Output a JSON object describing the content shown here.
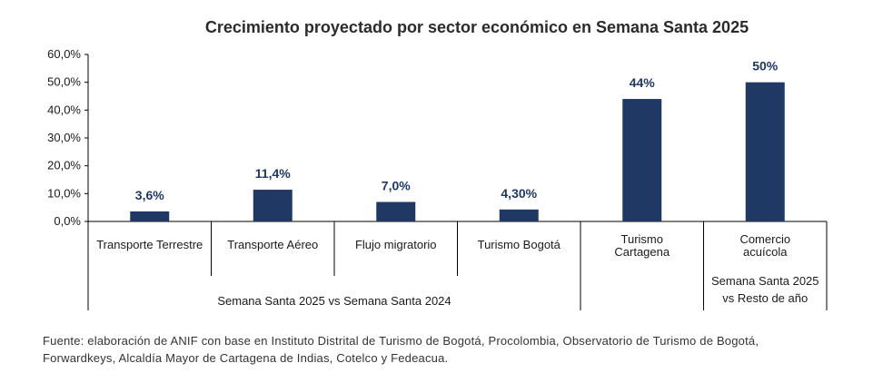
{
  "chart_data": {
    "type": "bar",
    "title": "Crecimiento proyectado por sector económico en Semana Santa 2025",
    "categories": [
      [
        "Transporte Terrestre"
      ],
      [
        "Transporte Aéreo"
      ],
      [
        "Flujo migratorio"
      ],
      [
        "Turismo Bogotá"
      ],
      [
        "Turismo",
        "Cartagena"
      ],
      [
        "Comercio",
        "acuícola"
      ]
    ],
    "values": [
      3.6,
      11.4,
      7.0,
      4.3,
      44,
      50
    ],
    "data_labels": [
      "3,6%",
      "11,4%",
      "7,0%",
      "4,30%",
      "44%",
      "50%"
    ],
    "ylim": [
      0,
      60
    ],
    "yticks": [
      0,
      10,
      20,
      30,
      40,
      50,
      60
    ],
    "ytick_labels": [
      "0,0%",
      "10,0%",
      "20,0%",
      "30,0%",
      "40,0%",
      "50,0%",
      "60,0%"
    ],
    "groups": [
      {
        "label": [
          "Semana Santa 2025 vs Semana Santa 2024"
        ],
        "start": 0,
        "end": 3
      },
      {
        "label": [
          "Semana Santa 2025",
          "vs Resto de año"
        ],
        "start": 5,
        "end": 5
      }
    ],
    "bar_color": "#1f3864",
    "xlabel": "",
    "ylabel": ""
  },
  "source": "Fuente: elaboración de ANIF con base en Instituto Distrital de Turismo de Bogotá, Procolombia, Observatorio de Turismo de Bogotá, Forwardkeys, Alcaldía Mayor de Cartagena de Indias, Cotelco y Fedeacua."
}
